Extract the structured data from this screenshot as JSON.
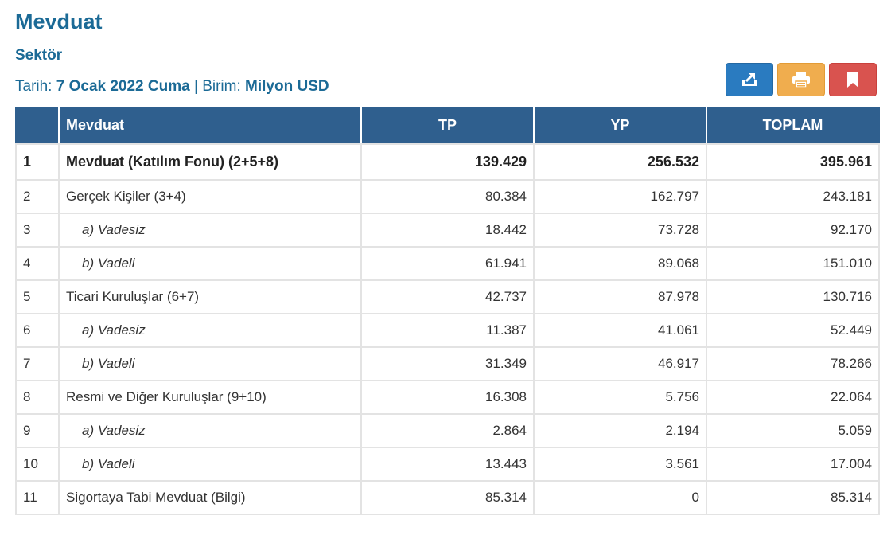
{
  "header": {
    "title": "Mevduat",
    "subtitle": "Sektör",
    "date_label": "Tarih:",
    "date_value": "7 Ocak 2022 Cuma",
    "separator": "|",
    "unit_label": "Birim:",
    "unit_value": "Milyon USD"
  },
  "toolbar": {
    "export_icon": "export-icon",
    "print_icon": "print-icon",
    "bookmark_icon": "bookmark-icon",
    "colors": {
      "export": "#2a7bc0",
      "print": "#f0ad4e",
      "bookmark": "#d9534f"
    }
  },
  "table": {
    "columns": [
      "",
      "Mevduat",
      "TP",
      "YP",
      "TOPLAM"
    ],
    "header_color": "#2f5f8e",
    "rows": [
      {
        "no": "1",
        "label": "Mevduat (Katılım Fonu) (2+5+8)",
        "tp": "139.429",
        "yp": "256.532",
        "toplam": "395.961",
        "style": "bold"
      },
      {
        "no": "2",
        "label": "Gerçek Kişiler (3+4)",
        "tp": "80.384",
        "yp": "162.797",
        "toplam": "243.181",
        "style": "normal"
      },
      {
        "no": "3",
        "label": "a) Vadesiz",
        "tp": "18.442",
        "yp": "73.728",
        "toplam": "92.170",
        "style": "sub"
      },
      {
        "no": "4",
        "label": "b) Vadeli",
        "tp": "61.941",
        "yp": "89.068",
        "toplam": "151.010",
        "style": "sub"
      },
      {
        "no": "5",
        "label": "Ticari Kuruluşlar (6+7)",
        "tp": "42.737",
        "yp": "87.978",
        "toplam": "130.716",
        "style": "normal"
      },
      {
        "no": "6",
        "label": "a) Vadesiz",
        "tp": "11.387",
        "yp": "41.061",
        "toplam": "52.449",
        "style": "sub"
      },
      {
        "no": "7",
        "label": "b) Vadeli",
        "tp": "31.349",
        "yp": "46.917",
        "toplam": "78.266",
        "style": "sub"
      },
      {
        "no": "8",
        "label": "Resmi ve Diğer Kuruluşlar (9+10)",
        "tp": "16.308",
        "yp": "5.756",
        "toplam": "22.064",
        "style": "normal"
      },
      {
        "no": "9",
        "label": "a) Vadesiz",
        "tp": "2.864",
        "yp": "2.194",
        "toplam": "5.059",
        "style": "sub"
      },
      {
        "no": "10",
        "label": "b) Vadeli",
        "tp": "13.443",
        "yp": "3.561",
        "toplam": "17.004",
        "style": "sub"
      },
      {
        "no": "11",
        "label": "Sigortaya Tabi Mevduat (Bilgi)",
        "tp": "85.314",
        "yp": "0",
        "toplam": "85.314",
        "style": "normal"
      }
    ]
  }
}
